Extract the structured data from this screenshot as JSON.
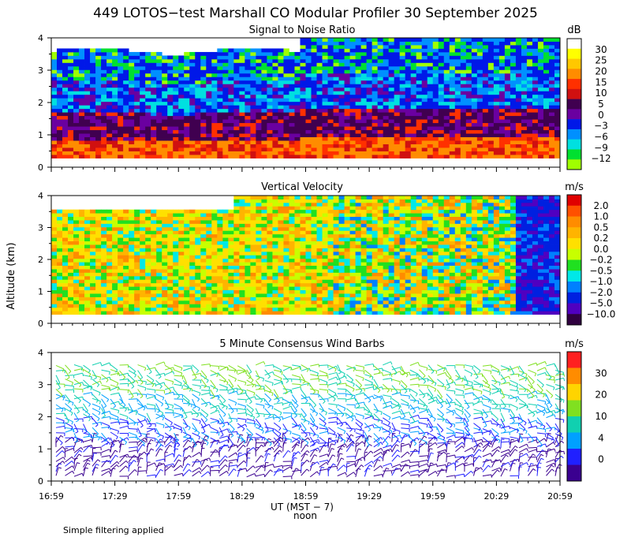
{
  "title": "449 LOTOS−test Marshall CO Modular Profiler 30 September 2025",
  "footer_note": "Simple filtering applied",
  "y_axis_label": "Altitude (km)",
  "x_axis": {
    "label": "UT  (MST − 7)",
    "noon_label": "noon",
    "tick_labels": [
      "16:59",
      "17:29",
      "17:59",
      "18:29",
      "18:59",
      "19:29",
      "19:59",
      "20:29",
      "20:59"
    ]
  },
  "chart_data": [
    {
      "type": "heatmap",
      "title": "Signal to Noise Ratio",
      "ylabel": "Altitude (km)",
      "ylim": [
        0,
        4
      ],
      "y_ticks": [
        "0",
        "1",
        "2",
        "3",
        "4"
      ],
      "colorbar_unit": "dB",
      "colorbar_labels": [
        "30",
        "25",
        "20",
        "15",
        "10",
        "5",
        "0",
        "−3",
        "−6",
        "−9",
        "−12"
      ],
      "colors": [
        "#ffffff",
        "#ffff00",
        "#ffc800",
        "#ff8c00",
        "#ff3000",
        "#d01010",
        "#400050",
        "#6a00a0",
        "#0018e8",
        "#0090ff",
        "#00e0e0",
        "#00e030",
        "#a0ff00"
      ]
    },
    {
      "type": "heatmap",
      "title": "Vertical Velocity",
      "ylabel": "Altitude (km)",
      "ylim": [
        0,
        4
      ],
      "y_ticks": [
        "0",
        "1",
        "2",
        "3",
        "4"
      ],
      "colorbar_unit": "m/s",
      "colorbar_labels": [
        "2.0",
        "1.0",
        "0.5",
        "0.2",
        "0.0",
        "−0.2",
        "−0.5",
        "−1.0",
        "−2.0",
        "−5.0",
        "−10.0"
      ],
      "colors": [
        "#e00000",
        "#ff5000",
        "#ff8c00",
        "#ffb400",
        "#ffe000",
        "#c8ff00",
        "#20e020",
        "#00e8e8",
        "#0080ff",
        "#0020e0",
        "#5000c0",
        "#300040"
      ]
    },
    {
      "type": "scatter",
      "title": "5 Minute Consensus Wind Barbs",
      "ylabel": "Altitude (km)",
      "ylim": [
        0,
        4
      ],
      "y_ticks": [
        "0",
        "1",
        "2",
        "3",
        "4"
      ],
      "colorbar_unit": "m/s",
      "colorbar_labels": [
        "30",
        "20",
        "10",
        "4",
        "0"
      ],
      "colors": [
        "#ff2020",
        "#ff8c00",
        "#ffd400",
        "#80e020",
        "#10d0b0",
        "#00a0ff",
        "#2020ff",
        "#3a0090"
      ]
    }
  ]
}
